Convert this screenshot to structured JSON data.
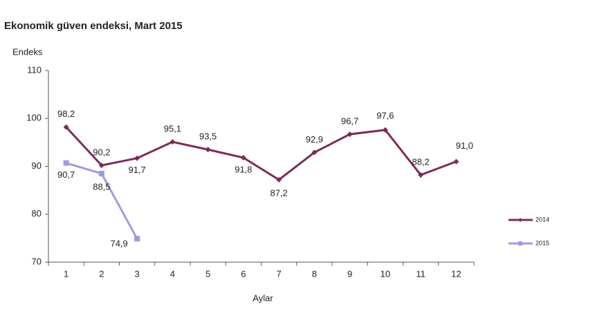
{
  "chart_data": {
    "type": "line",
    "title": "Ekonomik güven endeksi, Mart 2015",
    "y_label": "Endeks",
    "x_label": "Aylar",
    "categories": [
      "1",
      "2",
      "3",
      "4",
      "5",
      "6",
      "7",
      "8",
      "9",
      "10",
      "11",
      "12"
    ],
    "series": [
      {
        "name": "2014",
        "color": "#7b2c57",
        "values": [
          98.2,
          90.2,
          91.7,
          95.1,
          93.5,
          91.8,
          87.2,
          92.9,
          96.7,
          97.6,
          88.2,
          91.0
        ],
        "value_labels": [
          "98,2",
          "90,2",
          "91,7",
          "95,1",
          "93,5",
          "91,8",
          "87,2",
          "92,9",
          "96,7",
          "97,6",
          "88,2",
          "91,0"
        ]
      },
      {
        "name": "2015",
        "color": "#9e9be0",
        "values": [
          90.7,
          88.5,
          74.9,
          null,
          null,
          null,
          null,
          null,
          null,
          null,
          null,
          null
        ],
        "value_labels": [
          "90,7",
          "88,5",
          "74,9",
          null,
          null,
          null,
          null,
          null,
          null,
          null,
          null,
          null
        ]
      }
    ],
    "ylim": [
      70,
      110
    ],
    "yticks": [
      70,
      80,
      90,
      100,
      110
    ],
    "legend": "right"
  }
}
